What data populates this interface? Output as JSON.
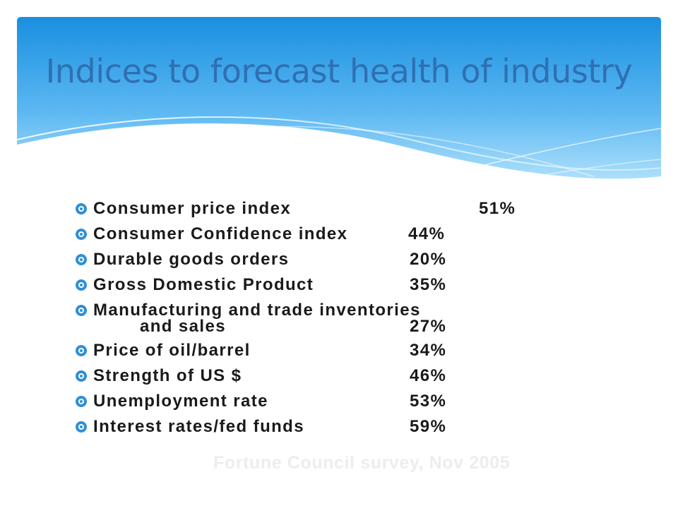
{
  "slide": {
    "title": "Indices to forecast health of industry",
    "source": "Fortune Council survey, Nov 2005"
  },
  "items": [
    {
      "label": "Consumer price index",
      "value": "51%"
    },
    {
      "label": "Consumer Confidence index",
      "value": "44%"
    },
    {
      "label": "Durable goods orders",
      "value": "20%"
    },
    {
      "label": "Gross Domestic Product",
      "value": "35%"
    },
    {
      "label": "Manufacturing and trade inventories",
      "label_continued": "and sales",
      "value": "27%"
    },
    {
      "label": "Price of oil/barrel",
      "value": "34%"
    },
    {
      "label": "Strength of US $",
      "value": "46%"
    },
    {
      "label": "Unemployment rate",
      "value": "53%"
    },
    {
      "label": "Interest rates/fed funds",
      "value": "59%"
    }
  ],
  "colors": {
    "title": "#2f6fb2",
    "bullet": "#2e8fd8",
    "header_top": "#1a8fe0",
    "header_bottom": "#aee0fb"
  },
  "bullet_icon": "target-bullet-icon"
}
